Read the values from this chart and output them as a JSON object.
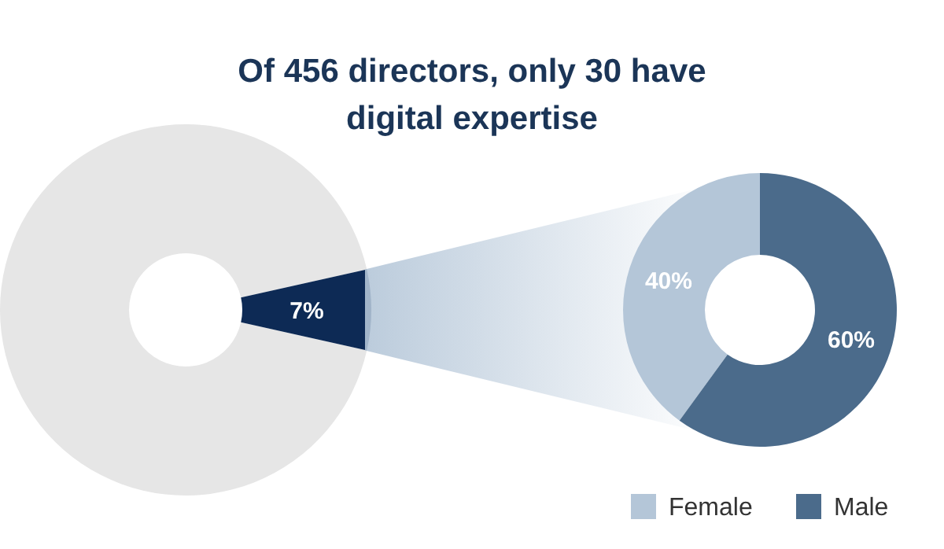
{
  "chart_data": [
    {
      "type": "donut",
      "title": "Of 456 directors, only 30 have digital expertise",
      "categories": [
        null,
        null
      ],
      "values": [
        93,
        7
      ],
      "colors": [
        "#e6e6e6",
        "#0d2a55"
      ],
      "value_labels": [
        null,
        "7%"
      ]
    },
    {
      "type": "donut",
      "categories": [
        "Female",
        "Male"
      ],
      "values": [
        40,
        60
      ],
      "colors": [
        "#b4c6d8",
        "#4b6b8b"
      ],
      "value_labels": [
        "40%",
        "60%"
      ],
      "legend": "bottom"
    }
  ]
}
